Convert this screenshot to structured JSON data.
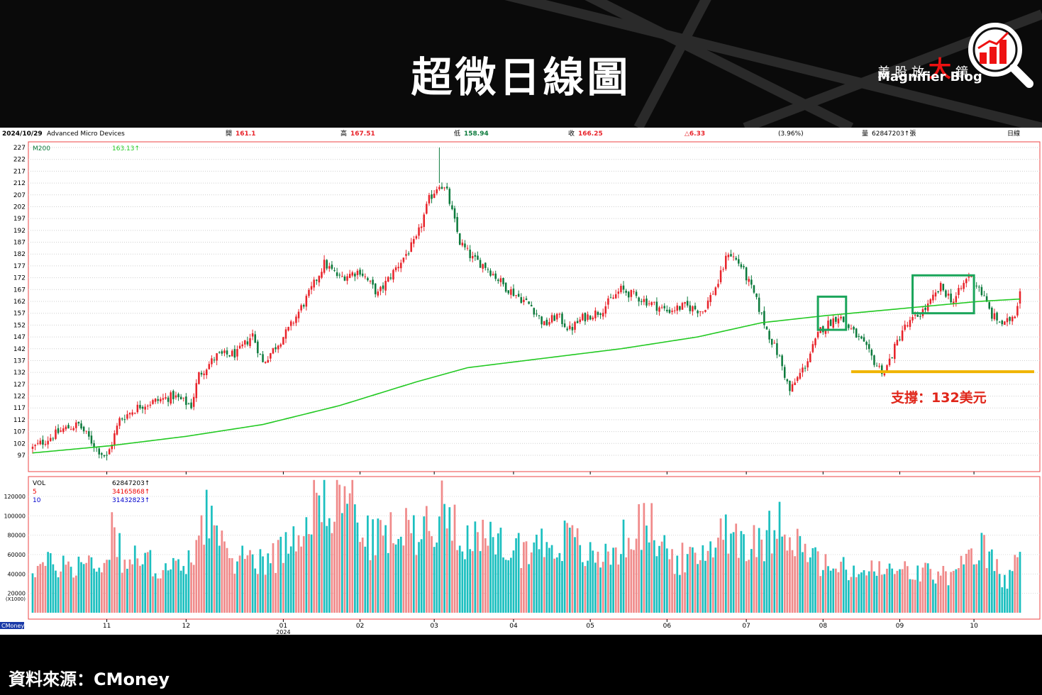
{
  "header": {
    "title": "超微日線圖",
    "brand_cn_pre": "美股放",
    "brand_cn_big": "大",
    "brand_cn_post": "鏡",
    "brand_en": "Magnifier Blog"
  },
  "info_bar": {
    "date": "2024/10/29",
    "company": "Advanced Micro Devices",
    "open_label": "開",
    "open_value": "161.1",
    "high_label": "高",
    "high_value": "167.51",
    "low_label": "低",
    "low_value": "158.94",
    "close_label": "收",
    "close_value": "166.25",
    "change": "△6.33",
    "change_pct": "(3.96%)",
    "volume_label": "量",
    "volume_value": "62847203↑張",
    "period": "日線"
  },
  "price_legend": {
    "label": "M200",
    "value": "163.13↑"
  },
  "volume_legend": {
    "vol_label": "VOL",
    "vol_value": "62847203↑",
    "ma5_label": "5",
    "ma5_value": "34165868↑",
    "ma10_label": "10",
    "ma10_value": "31432823↑"
  },
  "annotation": {
    "support": "支撐：132美元"
  },
  "watermark": "CMoney",
  "source": "資料來源：CMoney",
  "colors": {
    "up": "#e8232a",
    "down": "#0c7a3c",
    "ma200": "#22c922",
    "support": "#f0b400",
    "vol_up": "#f08a8a",
    "vol_down": "#1bbfbf",
    "box": "#1aa55a"
  },
  "chart_data": [
    {
      "type": "candlestick",
      "y_ticks": [
        97,
        102,
        107,
        112,
        117,
        122,
        127,
        132,
        137,
        142,
        147,
        152,
        157,
        162,
        167,
        172,
        177,
        182,
        187,
        192,
        197,
        202,
        207,
        212,
        217,
        222,
        227
      ],
      "ylim": [
        93,
        228
      ],
      "x_tick_labels": [
        "11",
        "12",
        "01",
        "02",
        "03",
        "04",
        "05",
        "06",
        "07",
        "08",
        "09",
        "10"
      ],
      "x_tick_sublabel": "2024",
      "anchors": [
        {
          "d": 0,
          "p": 100
        },
        {
          "d": 12,
          "p": 108
        },
        {
          "d": 18,
          "p": 110
        },
        {
          "d": 25,
          "p": 100
        },
        {
          "d": 29,
          "p": 96
        },
        {
          "d": 34,
          "p": 112
        },
        {
          "d": 42,
          "p": 118
        },
        {
          "d": 55,
          "p": 122
        },
        {
          "d": 62,
          "p": 118
        },
        {
          "d": 65,
          "p": 131
        },
        {
          "d": 72,
          "p": 139
        },
        {
          "d": 80,
          "p": 140
        },
        {
          "d": 86,
          "p": 148
        },
        {
          "d": 90,
          "p": 136
        },
        {
          "d": 100,
          "p": 150
        },
        {
          "d": 108,
          "p": 165
        },
        {
          "d": 114,
          "p": 178
        },
        {
          "d": 120,
          "p": 172
        },
        {
          "d": 128,
          "p": 175
        },
        {
          "d": 135,
          "p": 165
        },
        {
          "d": 142,
          "p": 176
        },
        {
          "d": 150,
          "p": 188
        },
        {
          "d": 155,
          "p": 205
        },
        {
          "d": 159,
          "p": 212
        },
        {
          "d": 162,
          "p": 208
        },
        {
          "d": 167,
          "p": 187
        },
        {
          "d": 172,
          "p": 180
        },
        {
          "d": 177,
          "p": 177
        },
        {
          "d": 185,
          "p": 168
        },
        {
          "d": 195,
          "p": 160
        },
        {
          "d": 200,
          "p": 152
        },
        {
          "d": 205,
          "p": 156
        },
        {
          "d": 210,
          "p": 150
        },
        {
          "d": 215,
          "p": 155
        },
        {
          "d": 222,
          "p": 158
        },
        {
          "d": 230,
          "p": 167
        },
        {
          "d": 240,
          "p": 162
        },
        {
          "d": 248,
          "p": 158
        },
        {
          "d": 255,
          "p": 160
        },
        {
          "d": 262,
          "p": 158
        },
        {
          "d": 268,
          "p": 170
        },
        {
          "d": 272,
          "p": 183
        },
        {
          "d": 277,
          "p": 177
        },
        {
          "d": 282,
          "p": 165
        },
        {
          "d": 287,
          "p": 150
        },
        {
          "d": 292,
          "p": 138
        },
        {
          "d": 296,
          "p": 124
        },
        {
          "d": 302,
          "p": 135
        },
        {
          "d": 308,
          "p": 150
        },
        {
          "d": 315,
          "p": 156
        },
        {
          "d": 320,
          "p": 150
        },
        {
          "d": 324,
          "p": 145
        },
        {
          "d": 330,
          "p": 135
        },
        {
          "d": 333,
          "p": 132
        },
        {
          "d": 340,
          "p": 150
        },
        {
          "d": 345,
          "p": 155
        },
        {
          "d": 350,
          "p": 160
        },
        {
          "d": 355,
          "p": 168
        },
        {
          "d": 360,
          "p": 162
        },
        {
          "d": 366,
          "p": 173
        },
        {
          "d": 370,
          "p": 168
        },
        {
          "d": 375,
          "p": 156
        },
        {
          "d": 380,
          "p": 152
        },
        {
          "d": 384,
          "p": 157
        },
        {
          "d": 386,
          "p": 166
        }
      ],
      "ma200": [
        {
          "d": 0,
          "p": 98
        },
        {
          "d": 30,
          "p": 101
        },
        {
          "d": 60,
          "p": 105
        },
        {
          "d": 90,
          "p": 110
        },
        {
          "d": 120,
          "p": 118
        },
        {
          "d": 150,
          "p": 128
        },
        {
          "d": 170,
          "p": 134
        },
        {
          "d": 200,
          "p": 138
        },
        {
          "d": 230,
          "p": 142
        },
        {
          "d": 260,
          "p": 147
        },
        {
          "d": 285,
          "p": 153
        },
        {
          "d": 310,
          "p": 156
        },
        {
          "d": 340,
          "p": 159
        },
        {
          "d": 370,
          "p": 162
        },
        {
          "d": 386,
          "p": 163
        }
      ],
      "support_level": 132,
      "highlight_boxes": [
        {
          "d0": 307,
          "d1": 318,
          "p0": 150,
          "p1": 164
        },
        {
          "d0": 344,
          "d1": 368,
          "p0": 157,
          "p1": 173
        }
      ]
    },
    {
      "type": "bar",
      "series_name": "VOL",
      "y_ticks": [
        20000,
        40000,
        60000,
        80000,
        100000,
        120000
      ],
      "ylim": [
        0,
        140000
      ],
      "unit_label": "(X1000)",
      "volume_anchors": [
        {
          "d": 0,
          "v": 50000
        },
        {
          "d": 30,
          "v": 55000
        },
        {
          "d": 31,
          "v": 110000
        },
        {
          "d": 35,
          "v": 60000
        },
        {
          "d": 60,
          "v": 45000
        },
        {
          "d": 68,
          "v": 115000
        },
        {
          "d": 75,
          "v": 60000
        },
        {
          "d": 95,
          "v": 60000
        },
        {
          "d": 108,
          "v": 110000
        },
        {
          "d": 112,
          "v": 135000
        },
        {
          "d": 118,
          "v": 120000
        },
        {
          "d": 125,
          "v": 130000
        },
        {
          "d": 130,
          "v": 80000
        },
        {
          "d": 150,
          "v": 90000
        },
        {
          "d": 155,
          "v": 100000
        },
        {
          "d": 162,
          "v": 115000
        },
        {
          "d": 170,
          "v": 80000
        },
        {
          "d": 190,
          "v": 70000
        },
        {
          "d": 210,
          "v": 80000
        },
        {
          "d": 220,
          "v": 55000
        },
        {
          "d": 230,
          "v": 75000
        },
        {
          "d": 240,
          "v": 100000
        },
        {
          "d": 250,
          "v": 60000
        },
        {
          "d": 260,
          "v": 55000
        },
        {
          "d": 270,
          "v": 95000
        },
        {
          "d": 285,
          "v": 70000
        },
        {
          "d": 292,
          "v": 110000
        },
        {
          "d": 300,
          "v": 70000
        },
        {
          "d": 310,
          "v": 50000
        },
        {
          "d": 320,
          "v": 45000
        },
        {
          "d": 340,
          "v": 45000
        },
        {
          "d": 360,
          "v": 40000
        },
        {
          "d": 372,
          "v": 70000
        },
        {
          "d": 380,
          "v": 32000
        },
        {
          "d": 386,
          "v": 63000
        }
      ]
    }
  ]
}
